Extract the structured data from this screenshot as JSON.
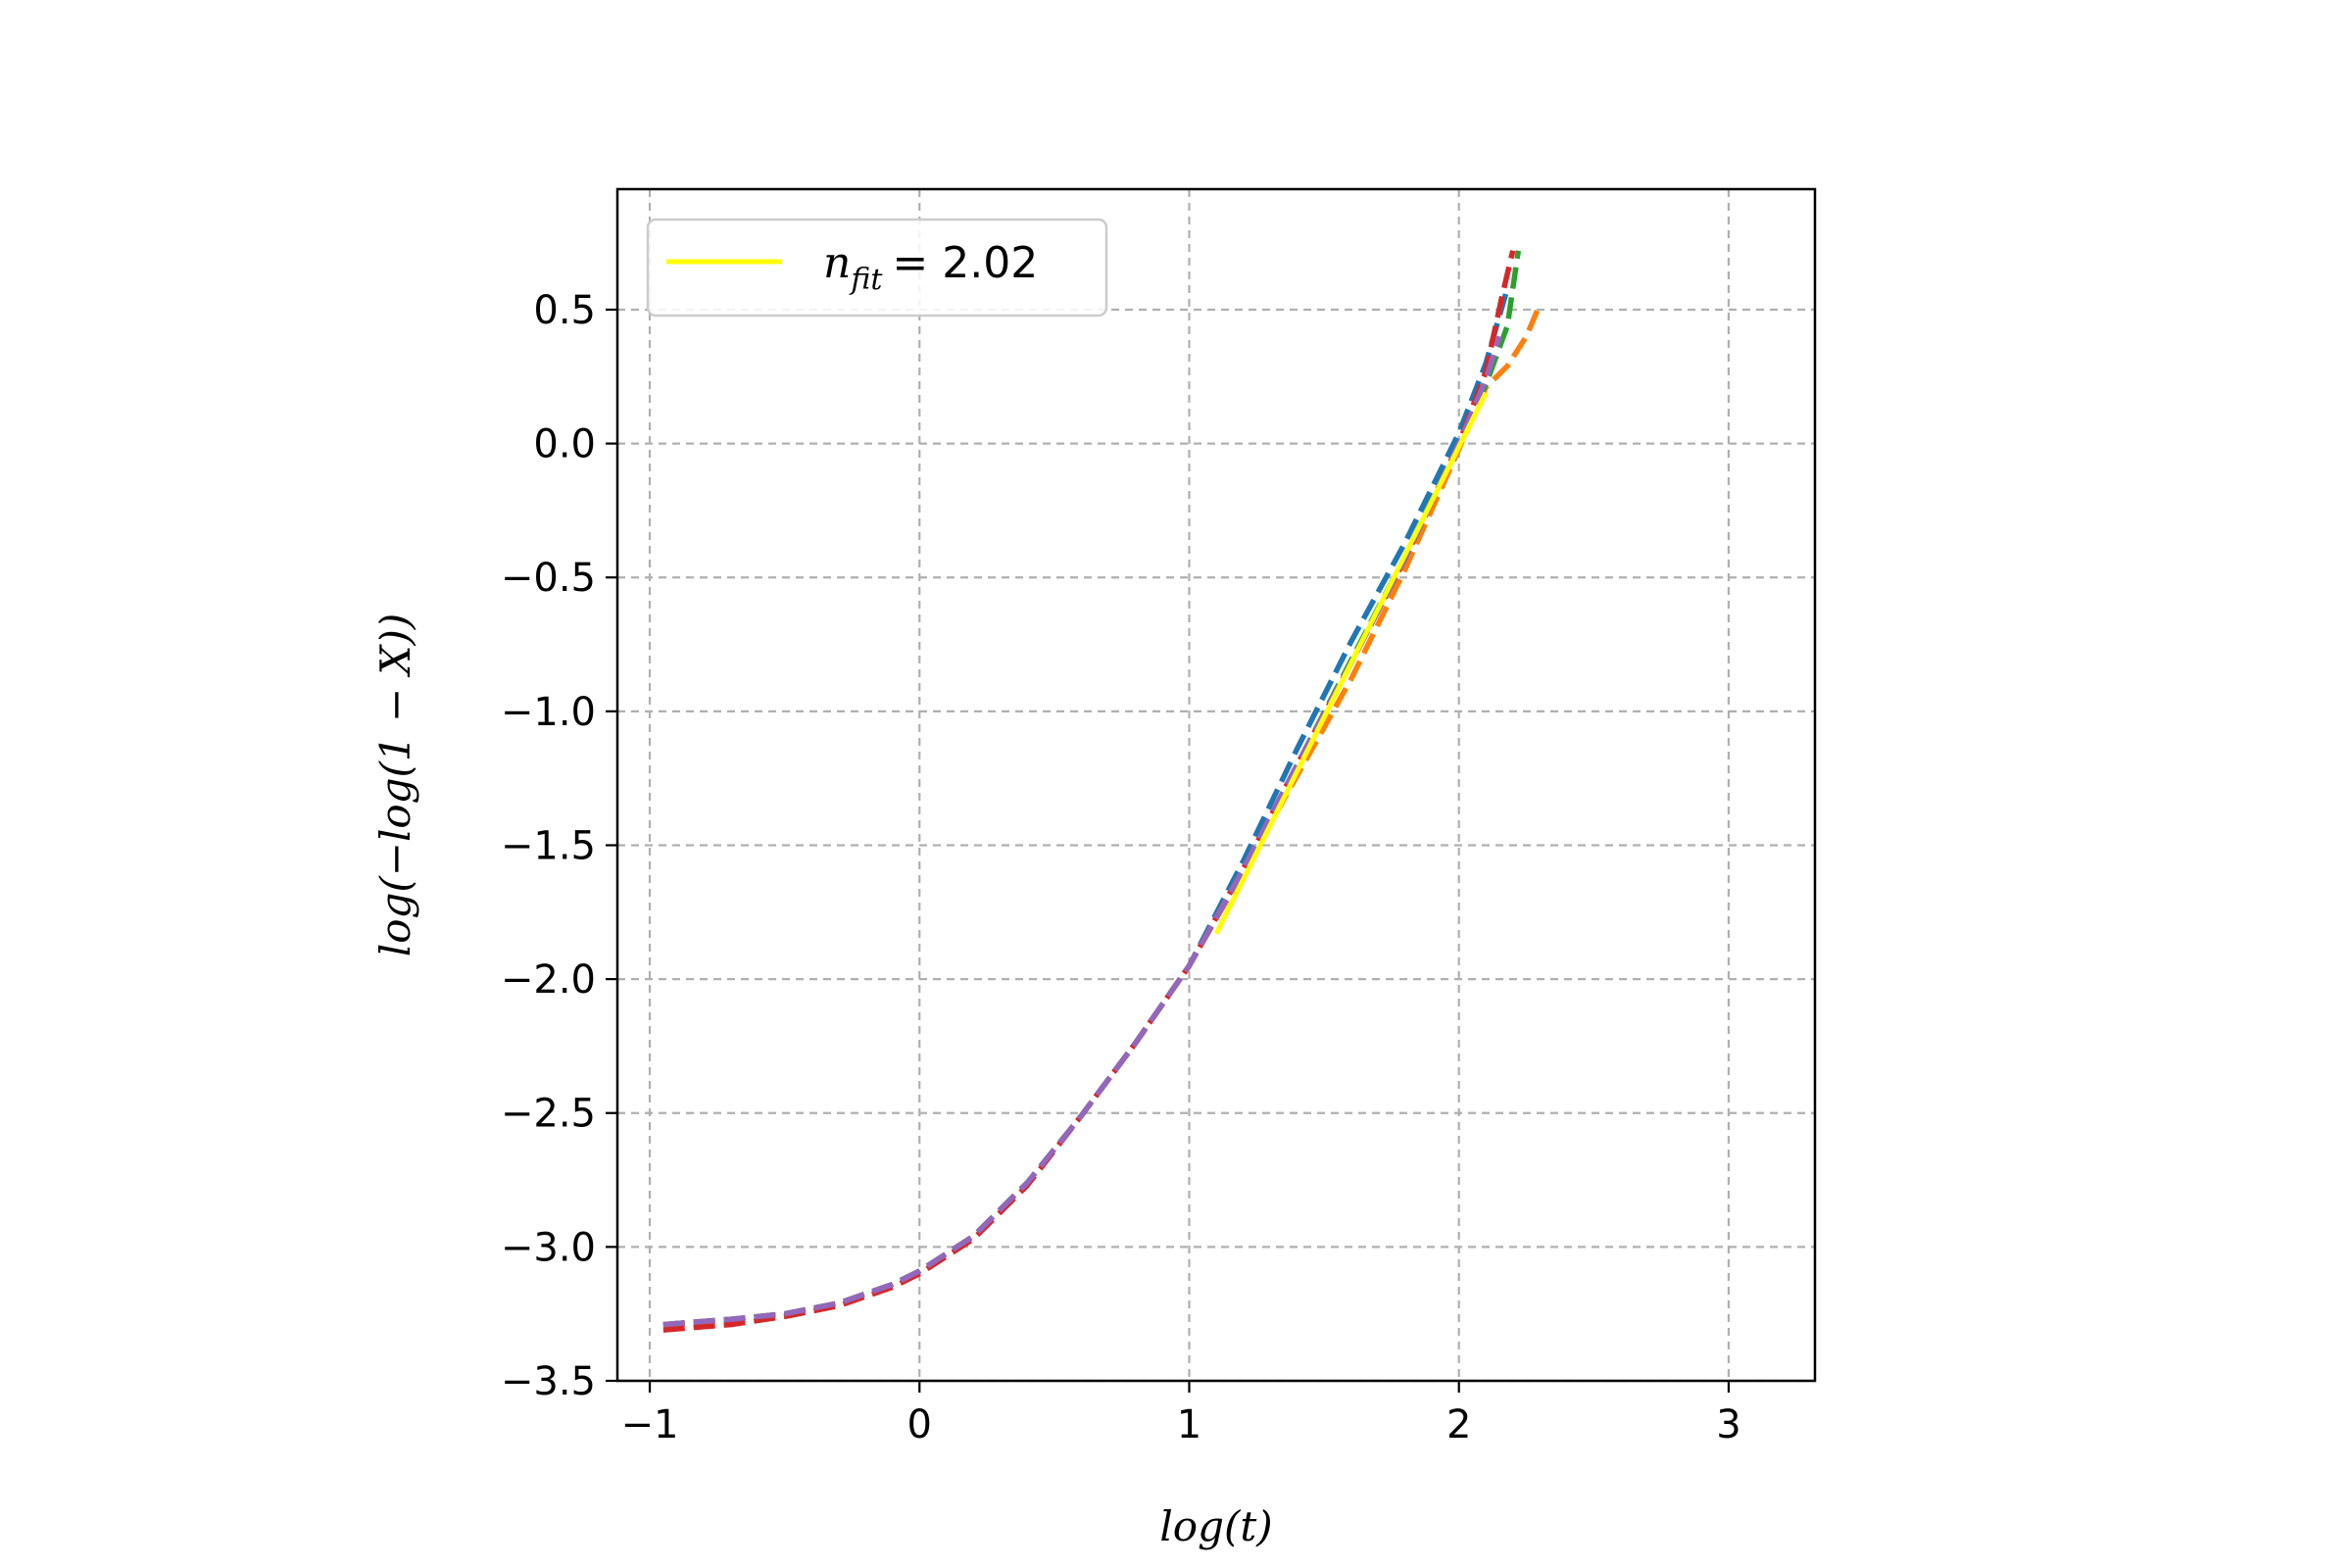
{
  "chart_data": {
    "type": "line",
    "title": "",
    "xlabel": "log(t)",
    "ylabel": "log(−log(1 − X))",
    "xlim": [
      -1.12,
      3.32
    ],
    "ylim": [
      -3.5,
      0.95
    ],
    "grid": true,
    "legend_placement": "upper-left",
    "x_ticks": [
      {
        "value": -1,
        "label": "−1"
      },
      {
        "value": 0,
        "label": "0"
      },
      {
        "value": 1,
        "label": "1"
      },
      {
        "value": 2,
        "label": "2"
      },
      {
        "value": 3,
        "label": "3"
      }
    ],
    "y_ticks": [
      {
        "value": 0.5,
        "label": "0.5"
      },
      {
        "value": 0.0,
        "label": "0.0"
      },
      {
        "value": -0.5,
        "label": "−0.5"
      },
      {
        "value": -1.0,
        "label": "−1.0"
      },
      {
        "value": -1.5,
        "label": "−1.5"
      },
      {
        "value": -2.0,
        "label": "−2.0"
      },
      {
        "value": -2.5,
        "label": "−2.5"
      },
      {
        "value": -3.0,
        "label": "−3.0"
      },
      {
        "value": -3.5,
        "label": "−3.5"
      }
    ],
    "legend": {
      "symbol": "n",
      "subscript": "fit",
      "value_text": "= 2.02"
    },
    "series": [
      {
        "color": "#1f77b4",
        "style": "dashed",
        "x": [
          -0.95,
          -0.7,
          -0.5,
          -0.3,
          -0.1,
          0.0,
          0.2,
          0.4,
          0.6,
          0.8,
          1.0,
          1.2,
          1.4,
          1.6,
          1.8,
          2.0,
          2.1,
          2.18
        ],
        "y": [
          -3.29,
          -3.27,
          -3.25,
          -3.21,
          -3.14,
          -3.09,
          -2.96,
          -2.76,
          -2.51,
          -2.24,
          -1.95,
          -1.56,
          -1.14,
          -0.74,
          -0.37,
          0.04,
          0.3,
          0.58
        ]
      },
      {
        "color": "#ff7f0e",
        "style": "dashed",
        "x": [
          -0.95,
          -0.7,
          -0.5,
          -0.3,
          -0.1,
          0.0,
          0.2,
          0.4,
          0.6,
          0.8,
          1.0,
          1.2,
          1.4,
          1.6,
          1.8,
          2.0,
          2.1,
          2.18,
          2.25,
          2.3
        ],
        "y": [
          -3.29,
          -3.27,
          -3.25,
          -3.21,
          -3.14,
          -3.09,
          -2.96,
          -2.76,
          -2.51,
          -2.24,
          -1.95,
          -1.6,
          -1.24,
          -0.88,
          -0.47,
          -0.02,
          0.21,
          0.29,
          0.4,
          0.52
        ]
      },
      {
        "color": "#2ca02c",
        "style": "dashed",
        "x": [
          -0.95,
          -0.7,
          -0.5,
          -0.3,
          -0.1,
          0.0,
          0.2,
          0.4,
          0.6,
          0.8,
          1.0,
          1.2,
          1.4,
          1.6,
          1.8,
          2.0,
          2.1,
          2.18,
          2.22
        ],
        "y": [
          -3.29,
          -3.27,
          -3.25,
          -3.21,
          -3.14,
          -3.09,
          -2.96,
          -2.76,
          -2.51,
          -2.24,
          -1.95,
          -1.59,
          -1.2,
          -0.81,
          -0.42,
          0.0,
          0.22,
          0.44,
          0.72
        ]
      },
      {
        "color": "#d62728",
        "style": "dashed",
        "x": [
          -0.95,
          -0.7,
          -0.5,
          -0.3,
          -0.1,
          0.0,
          0.2,
          0.4,
          0.6,
          0.8,
          1.0,
          1.2,
          1.4,
          1.6,
          1.8,
          2.0,
          2.1,
          2.16,
          2.2
        ],
        "y": [
          -3.31,
          -3.29,
          -3.26,
          -3.22,
          -3.15,
          -3.1,
          -2.97,
          -2.77,
          -2.51,
          -2.24,
          -1.95,
          -1.59,
          -1.2,
          -0.82,
          -0.43,
          0.0,
          0.27,
          0.55,
          0.72
        ]
      },
      {
        "color": "#9467bd",
        "style": "dashed",
        "x": [
          -0.95,
          -0.7,
          -0.5,
          -0.3,
          -0.1,
          0.0,
          0.2,
          0.4,
          0.6,
          0.8,
          1.0,
          1.2,
          1.4,
          1.6,
          1.8,
          2.0,
          2.1,
          2.15
        ],
        "y": [
          -3.29,
          -3.27,
          -3.25,
          -3.21,
          -3.14,
          -3.09,
          -2.96,
          -2.76,
          -2.51,
          -2.24,
          -1.95,
          -1.59,
          -1.2,
          -0.82,
          -0.43,
          0.0,
          0.24,
          0.4
        ]
      },
      {
        "color": "#ffff00",
        "style": "solid",
        "legend": true,
        "x": [
          1.1,
          2.1
        ],
        "y": [
          -1.83,
          0.19
        ]
      }
    ]
  }
}
